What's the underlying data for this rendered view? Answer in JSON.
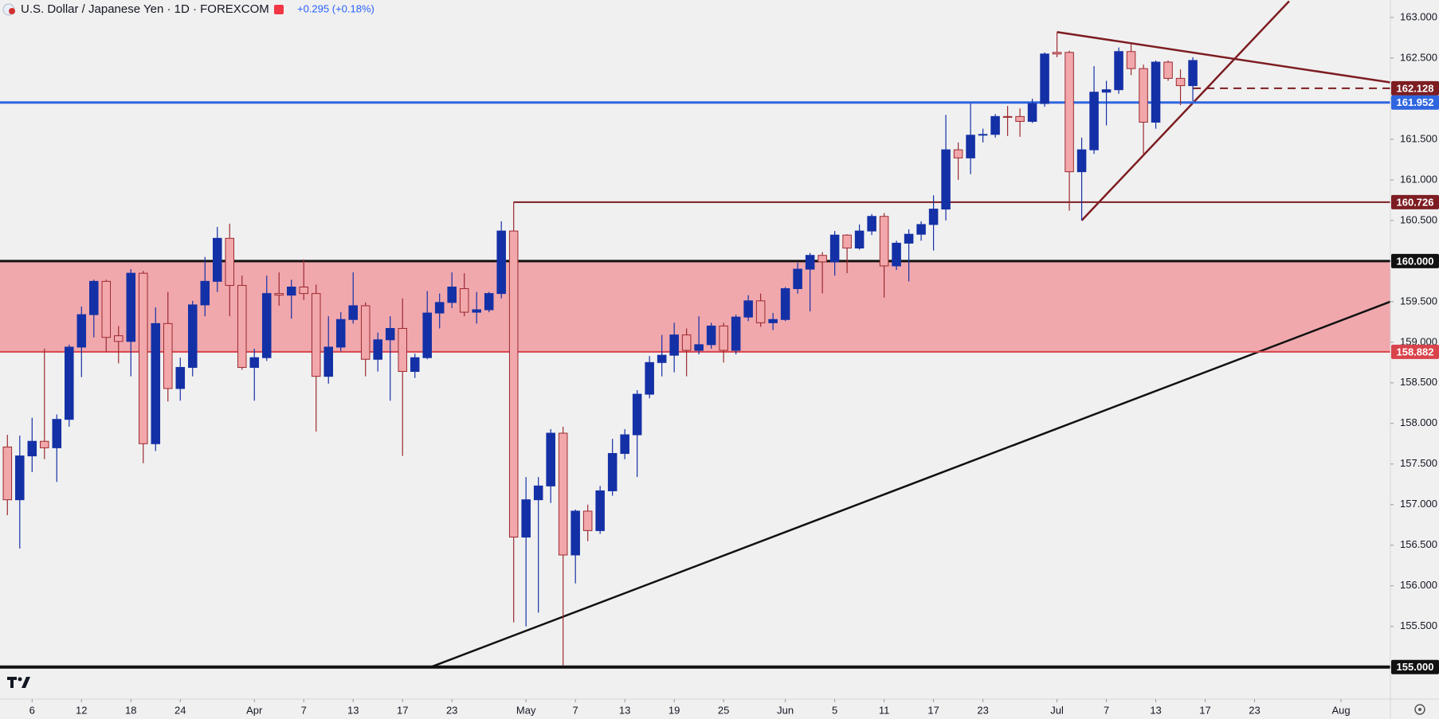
{
  "chart_data": {
    "type": "candlestick",
    "title": "U.S. Dollar / Japanese Yen · 1D · FOREXCOM",
    "change": "+0.295 (+0.18%)",
    "up_color": "#1430a6",
    "down_color": "#f2a7aa",
    "down_border": "#9b2a30",
    "open": [
      157.71,
      157.06,
      157.6,
      157.78,
      157.7,
      158.05,
      158.94,
      159.34,
      159.75,
      159.08,
      159.01,
      159.85,
      157.75,
      159.23,
      158.43,
      158.69,
      159.46,
      159.75,
      160.28,
      159.7,
      158.69,
      158.81,
      159.6,
      159.58,
      159.68,
      159.6,
      158.58,
      158.94,
      159.28,
      159.45,
      158.79,
      159.03,
      159.17,
      158.64,
      158.81,
      159.36,
      159.49,
      159.66,
      159.37,
      159.4,
      159.6,
      160.37,
      156.6,
      157.06,
      157.23,
      157.88,
      156.38,
      156.92,
      156.68,
      157.17,
      157.63,
      157.86,
      158.36,
      158.75,
      158.84,
      159.09,
      158.9,
      158.97,
      159.2,
      158.9,
      159.31,
      159.51,
      159.24,
      159.28,
      159.66,
      159.9,
      160.07,
      159.99,
      160.32,
      160.16,
      160.37,
      160.55,
      159.94,
      160.22,
      160.33,
      160.45,
      160.64,
      161.37,
      161.27,
      161.55,
      161.56,
      161.78,
      161.78,
      161.72,
      161.94,
      162.57,
      162.57,
      161.1,
      161.37,
      162.08,
      162.11,
      162.58,
      162.37,
      161.71,
      162.45,
      162.25,
      162.16
    ],
    "high": [
      157.86,
      157.85,
      158.07,
      158.92,
      158.11,
      158.97,
      159.44,
      159.77,
      159.77,
      159.2,
      159.9,
      159.88,
      159.43,
      159.62,
      158.81,
      159.51,
      160.05,
      160.42,
      160.46,
      159.82,
      158.92,
      159.82,
      159.86,
      159.77,
      160.02,
      159.71,
      159.32,
      159.37,
      159.86,
      159.49,
      159.12,
      159.32,
      159.54,
      158.86,
      159.63,
      159.6,
      159.86,
      159.85,
      159.62,
      159.62,
      160.49,
      160.73,
      157.34,
      157.34,
      157.93,
      157.96,
      156.94,
      157.0,
      157.23,
      157.81,
      157.93,
      158.41,
      158.83,
      159.09,
      159.24,
      159.17,
      159.32,
      159.24,
      159.24,
      159.34,
      159.58,
      159.6,
      159.36,
      159.68,
      159.98,
      160.1,
      160.11,
      160.37,
      160.33,
      160.45,
      160.58,
      160.59,
      160.25,
      160.39,
      160.49,
      160.81,
      161.8,
      161.46,
      161.94,
      161.63,
      161.81,
      161.91,
      161.88,
      162.0,
      162.57,
      162.82,
      162.59,
      161.52,
      162.4,
      162.22,
      162.63,
      162.67,
      162.42,
      162.47,
      162.47,
      162.36,
      162.51
    ],
    "low": [
      156.87,
      156.46,
      157.4,
      157.56,
      157.28,
      157.96,
      158.57,
      159.06,
      158.88,
      158.74,
      158.58,
      157.51,
      157.66,
      158.27,
      158.28,
      158.58,
      159.32,
      159.62,
      159.32,
      158.66,
      158.28,
      158.77,
      159.45,
      159.29,
      159.52,
      157.9,
      158.49,
      158.89,
      159.23,
      158.58,
      158.64,
      158.28,
      157.6,
      158.56,
      158.79,
      159.17,
      159.42,
      159.32,
      159.23,
      159.37,
      159.54,
      155.55,
      155.5,
      155.67,
      157.02,
      155.02,
      156.03,
      156.55,
      156.64,
      157.11,
      157.56,
      157.34,
      158.31,
      158.58,
      158.63,
      158.58,
      158.85,
      158.92,
      158.75,
      158.85,
      159.26,
      159.19,
      159.15,
      159.26,
      159.6,
      159.38,
      159.6,
      159.82,
      159.85,
      160.14,
      160.32,
      159.55,
      159.89,
      159.75,
      160.25,
      160.13,
      160.5,
      161.0,
      161.07,
      161.46,
      161.52,
      161.54,
      161.53,
      161.7,
      161.9,
      162.51,
      160.62,
      160.5,
      161.32,
      161.67,
      162.06,
      162.29,
      161.32,
      161.63,
      162.22,
      161.92,
      161.97
    ],
    "close": [
      157.06,
      157.6,
      157.78,
      157.7,
      158.05,
      158.94,
      159.34,
      159.75,
      159.06,
      159.01,
      159.85,
      157.75,
      159.23,
      158.43,
      158.69,
      159.46,
      159.75,
      160.28,
      159.7,
      158.69,
      158.81,
      159.6,
      159.58,
      159.68,
      159.6,
      158.58,
      158.94,
      159.28,
      159.45,
      158.79,
      159.03,
      159.17,
      158.64,
      158.81,
      159.36,
      159.49,
      159.68,
      159.37,
      159.4,
      159.6,
      160.37,
      156.6,
      157.06,
      157.23,
      157.88,
      156.38,
      156.92,
      156.68,
      157.17,
      157.63,
      157.86,
      158.36,
      158.75,
      158.84,
      159.09,
      158.9,
      158.97,
      159.2,
      158.9,
      159.31,
      159.51,
      159.24,
      159.28,
      159.66,
      159.9,
      160.07,
      159.99,
      160.32,
      160.16,
      160.37,
      160.55,
      159.94,
      160.22,
      160.33,
      160.45,
      160.64,
      161.37,
      161.27,
      161.55,
      161.56,
      161.78,
      161.77,
      161.72,
      161.94,
      162.55,
      162.55,
      161.1,
      161.37,
      162.08,
      162.11,
      162.58,
      162.37,
      161.71,
      162.45,
      162.25,
      162.16,
      162.47
    ],
    "xlim": [
      -0.6,
      112
    ],
    "xticks": [
      {
        "value": 2,
        "label": "6"
      },
      {
        "value": 6,
        "label": "12"
      },
      {
        "value": 10,
        "label": "18"
      },
      {
        "value": 14,
        "label": "24"
      },
      {
        "value": 20,
        "label": "Apr"
      },
      {
        "value": 24,
        "label": "7"
      },
      {
        "value": 28,
        "label": "13"
      },
      {
        "value": 32,
        "label": "17"
      },
      {
        "value": 36,
        "label": "23"
      },
      {
        "value": 42,
        "label": "May"
      },
      {
        "value": 46,
        "label": "7"
      },
      {
        "value": 50,
        "label": "13"
      },
      {
        "value": 54,
        "label": "19"
      },
      {
        "value": 58,
        "label": "25"
      },
      {
        "value": 63,
        "label": "Jun"
      },
      {
        "value": 67,
        "label": "5"
      },
      {
        "value": 71,
        "label": "11"
      },
      {
        "value": 75,
        "label": "17"
      },
      {
        "value": 79,
        "label": "23"
      },
      {
        "value": 85,
        "label": "Jul"
      },
      {
        "value": 89,
        "label": "7"
      },
      {
        "value": 93,
        "label": "13"
      },
      {
        "value": 97,
        "label": "17"
      },
      {
        "value": 101,
        "label": "23"
      },
      {
        "value": 108,
        "label": "Aug"
      }
    ],
    "ylim": [
      154.605,
      163.215
    ],
    "yticks": [
      {
        "value": 155,
        "label": "155.000"
      },
      {
        "value": 155.5,
        "label": "155.500"
      },
      {
        "value": 156,
        "label": "156.000"
      },
      {
        "value": 156.5,
        "label": "156.500"
      },
      {
        "value": 157,
        "label": "157.000"
      },
      {
        "value": 157.5,
        "label": "157.500"
      },
      {
        "value": 158,
        "label": "158.000"
      },
      {
        "value": 158.5,
        "label": "158.500"
      },
      {
        "value": 159,
        "label": "159.000"
      },
      {
        "value": 159.5,
        "label": "159.500"
      },
      {
        "value": 160,
        "label": "160.000"
      },
      {
        "value": 160.5,
        "label": "160.500"
      },
      {
        "value": 161,
        "label": "161.000"
      },
      {
        "value": 161.5,
        "label": "161.500"
      },
      {
        "value": 162,
        "label": "162.000"
      },
      {
        "value": 162.5,
        "label": "162.500"
      },
      {
        "value": 163,
        "label": "163.000"
      }
    ],
    "zone": {
      "from": 158.882,
      "to": 160.0,
      "color": "#f0a8ad"
    },
    "levels": [
      {
        "value": 162.128,
        "label": "162.128",
        "color": "#7d1d22",
        "start": 96,
        "dash": true,
        "width": 2
      },
      {
        "value": 161.952,
        "label": "161.952",
        "color": "#2f66e0",
        "width": 3
      },
      {
        "value": 160.726,
        "label": "160.726",
        "color": "#7d1d22",
        "start": 41,
        "width": 2
      },
      {
        "value": 160.0,
        "label": "160.000",
        "color": "#111111",
        "width": 3
      },
      {
        "value": 158.882,
        "label": "158.882",
        "color": "#d9434b",
        "width": 2
      },
      {
        "value": 155.0,
        "label": "155.000",
        "color": "#111111",
        "width": 4
      }
    ],
    "trendlines": [
      {
        "color": "#111111",
        "points": [
          [
            34.3,
            155.0
          ],
          [
            112,
            159.5
          ]
        ]
      },
      {
        "color": "#7d1d22",
        "points": [
          [
            85,
            162.82
          ],
          [
            112,
            162.2
          ]
        ]
      },
      {
        "color": "#7d1d22",
        "points": [
          [
            87,
            160.5
          ],
          [
            103.8,
            163.2
          ]
        ]
      }
    ]
  }
}
